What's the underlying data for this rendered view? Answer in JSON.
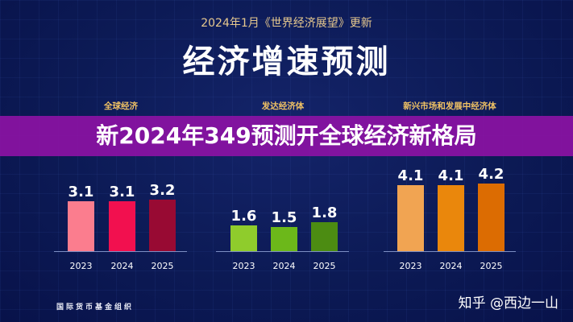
{
  "header": {
    "subtitle": "2024年1月《世界经济展望》更新",
    "title": "经济增速预测"
  },
  "banner": {
    "text": "新2024年349预测开全球经济新格局"
  },
  "footer": {
    "source": "国际货币基金组织",
    "watermark": "知乎 @西边一山"
  },
  "chart_data": [
    {
      "type": "bar",
      "title": "全球经济",
      "categories": [
        "2023",
        "2024",
        "2025"
      ],
      "values": [
        3.1,
        3.1,
        3.2
      ],
      "colors": [
        "#fb7d8e",
        "#f2104f",
        "#980a33"
      ]
    },
    {
      "type": "bar",
      "title": "发达经济体",
      "categories": [
        "2023",
        "2024",
        "2025"
      ],
      "values": [
        1.6,
        1.5,
        1.8
      ],
      "colors": [
        "#8fcc2c",
        "#6cb81a",
        "#4c8c12"
      ]
    },
    {
      "type": "bar",
      "title": "新兴市场和发展中经济体",
      "categories": [
        "2023",
        "2024",
        "2025"
      ],
      "values": [
        4.1,
        4.1,
        4.2
      ],
      "colors": [
        "#f1a452",
        "#ea870c",
        "#dc6c02"
      ]
    }
  ]
}
